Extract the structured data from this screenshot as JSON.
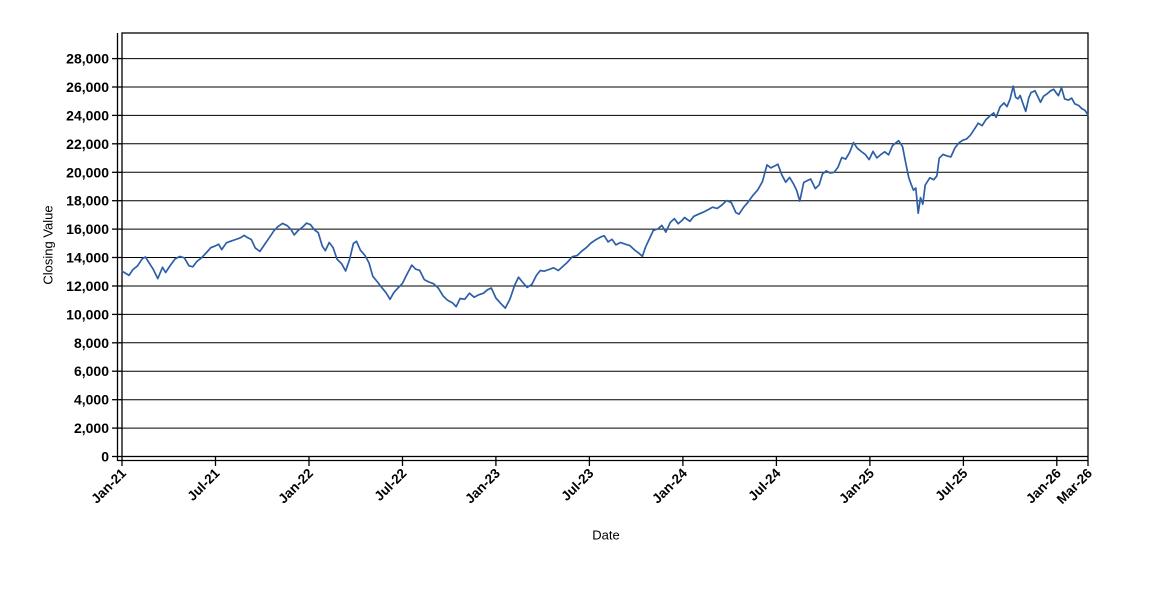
{
  "chart": {
    "background_color": "#ffffff",
    "line_color": "#2d5fa6",
    "grid_color": "#000000",
    "frame_color": "#000000",
    "text_color": "#000000"
  },
  "chart_data": {
    "type": "line",
    "title": "",
    "xlabel": "Date",
    "ylabel": "Closing Value",
    "legend": "none",
    "grid": "horizontal",
    "x_unit": "months since Jan-2021",
    "xlim": [
      0,
      62
    ],
    "ylim": [
      0,
      29800
    ],
    "y_ticks": [
      {
        "value": 0,
        "label": "0"
      },
      {
        "value": 2000,
        "label": "2,000"
      },
      {
        "value": 4000,
        "label": "4,000"
      },
      {
        "value": 6000,
        "label": "6,000"
      },
      {
        "value": 8000,
        "label": "8,000"
      },
      {
        "value": 10000,
        "label": "10,000"
      },
      {
        "value": 12000,
        "label": "12,000"
      },
      {
        "value": 14000,
        "label": "14,000"
      },
      {
        "value": 16000,
        "label": "16,000"
      },
      {
        "value": 18000,
        "label": "18,000"
      },
      {
        "value": 20000,
        "label": "20,000"
      },
      {
        "value": 22000,
        "label": "22,000"
      },
      {
        "value": 24000,
        "label": "24,000"
      },
      {
        "value": 26000,
        "label": "26,000"
      },
      {
        "value": 28000,
        "label": "28,000"
      }
    ],
    "x_ticks": [
      {
        "m": 0,
        "label": "Jan-21"
      },
      {
        "m": 6,
        "label": "Jul-21"
      },
      {
        "m": 12,
        "label": "Jan-22"
      },
      {
        "m": 18,
        "label": "Jul-22"
      },
      {
        "m": 24,
        "label": "Jan-23"
      },
      {
        "m": 30,
        "label": "Jul-23"
      },
      {
        "m": 36,
        "label": "Jan-24"
      },
      {
        "m": 42,
        "label": "Jul-24"
      },
      {
        "m": 48,
        "label": "Jan-25"
      },
      {
        "m": 54,
        "label": "Jul-25"
      },
      {
        "m": 60,
        "label": "Jan-26"
      },
      {
        "m": 62,
        "label": "Mar-26"
      }
    ],
    "series": [
      {
        "name": "Closing Value",
        "points": [
          [
            0,
            13040
          ],
          [
            0.25,
            12880
          ],
          [
            0.45,
            12740
          ],
          [
            0.7,
            13150
          ],
          [
            1,
            13420
          ],
          [
            1.3,
            13920
          ],
          [
            1.5,
            14040
          ],
          [
            1.75,
            13600
          ],
          [
            2,
            13180
          ],
          [
            2.3,
            12520
          ],
          [
            2.6,
            13310
          ],
          [
            2.8,
            12950
          ],
          [
            3.1,
            13450
          ],
          [
            3.4,
            13900
          ],
          [
            3.7,
            14070
          ],
          [
            4,
            13980
          ],
          [
            4.3,
            13420
          ],
          [
            4.55,
            13350
          ],
          [
            4.8,
            13720
          ],
          [
            5.1,
            13980
          ],
          [
            5.4,
            14320
          ],
          [
            5.7,
            14690
          ],
          [
            5.95,
            14800
          ],
          [
            6.2,
            14940
          ],
          [
            6.4,
            14560
          ],
          [
            6.7,
            15040
          ],
          [
            7,
            15160
          ],
          [
            7.3,
            15270
          ],
          [
            7.6,
            15390
          ],
          [
            7.85,
            15560
          ],
          [
            8,
            15440
          ],
          [
            8.3,
            15270
          ],
          [
            8.55,
            14680
          ],
          [
            8.85,
            14430
          ],
          [
            9.15,
            14920
          ],
          [
            9.45,
            15390
          ],
          [
            9.75,
            15880
          ],
          [
            10,
            16170
          ],
          [
            10.3,
            16400
          ],
          [
            10.6,
            16240
          ],
          [
            10.85,
            15980
          ],
          [
            11.05,
            15590
          ],
          [
            11.3,
            15900
          ],
          [
            11.6,
            16150
          ],
          [
            11.85,
            16420
          ],
          [
            12.1,
            16310
          ],
          [
            12.35,
            15950
          ],
          [
            12.6,
            15750
          ],
          [
            12.85,
            14820
          ],
          [
            13.05,
            14480
          ],
          [
            13.3,
            15060
          ],
          [
            13.55,
            14700
          ],
          [
            13.8,
            13890
          ],
          [
            14.1,
            13560
          ],
          [
            14.35,
            13050
          ],
          [
            14.6,
            13840
          ],
          [
            14.85,
            14990
          ],
          [
            15.05,
            15140
          ],
          [
            15.3,
            14520
          ],
          [
            15.6,
            14140
          ],
          [
            15.85,
            13620
          ],
          [
            16.1,
            12680
          ],
          [
            16.4,
            12280
          ],
          [
            16.7,
            11850
          ],
          [
            16.95,
            11520
          ],
          [
            17.2,
            11060
          ],
          [
            17.45,
            11550
          ],
          [
            17.7,
            11840
          ],
          [
            18,
            12190
          ],
          [
            18.3,
            12840
          ],
          [
            18.6,
            13470
          ],
          [
            18.85,
            13180
          ],
          [
            19.1,
            13100
          ],
          [
            19.4,
            12450
          ],
          [
            19.7,
            12280
          ],
          [
            20,
            12160
          ],
          [
            20.3,
            11850
          ],
          [
            20.6,
            11310
          ],
          [
            20.9,
            10990
          ],
          [
            21.2,
            10820
          ],
          [
            21.45,
            10550
          ],
          [
            21.7,
            11120
          ],
          [
            22,
            11060
          ],
          [
            22.3,
            11490
          ],
          [
            22.6,
            11210
          ],
          [
            22.9,
            11380
          ],
          [
            23.2,
            11490
          ],
          [
            23.45,
            11730
          ],
          [
            23.7,
            11860
          ],
          [
            24,
            11150
          ],
          [
            24.3,
            10780
          ],
          [
            24.6,
            10440
          ],
          [
            24.9,
            11080
          ],
          [
            25.2,
            12040
          ],
          [
            25.45,
            12620
          ],
          [
            25.7,
            12280
          ],
          [
            26,
            11900
          ],
          [
            26.3,
            12100
          ],
          [
            26.6,
            12740
          ],
          [
            26.85,
            13090
          ],
          [
            27.1,
            13040
          ],
          [
            27.4,
            13160
          ],
          [
            27.7,
            13280
          ],
          [
            28,
            13090
          ],
          [
            28.3,
            13380
          ],
          [
            28.6,
            13680
          ],
          [
            28.9,
            14060
          ],
          [
            29.2,
            14140
          ],
          [
            29.5,
            14440
          ],
          [
            29.8,
            14700
          ],
          [
            30.1,
            15020
          ],
          [
            30.4,
            15250
          ],
          [
            30.7,
            15430
          ],
          [
            30.95,
            15540
          ],
          [
            31.2,
            15100
          ],
          [
            31.45,
            15280
          ],
          [
            31.7,
            14890
          ],
          [
            32,
            15060
          ],
          [
            32.3,
            14940
          ],
          [
            32.6,
            14840
          ],
          [
            32.9,
            14530
          ],
          [
            33.15,
            14330
          ],
          [
            33.4,
            14090
          ],
          [
            33.6,
            14730
          ],
          [
            33.9,
            15440
          ],
          [
            34.1,
            15910
          ],
          [
            34.4,
            16020
          ],
          [
            34.65,
            16260
          ],
          [
            34.9,
            15790
          ],
          [
            35.2,
            16490
          ],
          [
            35.45,
            16730
          ],
          [
            35.7,
            16380
          ],
          [
            35.95,
            16610
          ],
          [
            36.1,
            16820
          ],
          [
            36.45,
            16550
          ],
          [
            36.7,
            16900
          ],
          [
            37,
            17050
          ],
          [
            37.3,
            17190
          ],
          [
            37.6,
            17350
          ],
          [
            37.9,
            17540
          ],
          [
            38.2,
            17460
          ],
          [
            38.5,
            17700
          ],
          [
            38.8,
            18010
          ],
          [
            39.1,
            17880
          ],
          [
            39.4,
            17160
          ],
          [
            39.6,
            17060
          ],
          [
            39.9,
            17540
          ],
          [
            40.2,
            17920
          ],
          [
            40.5,
            18380
          ],
          [
            40.8,
            18760
          ],
          [
            41.1,
            19340
          ],
          [
            41.4,
            20520
          ],
          [
            41.65,
            20310
          ],
          [
            41.9,
            20450
          ],
          [
            42.1,
            20560
          ],
          [
            42.35,
            19820
          ],
          [
            42.6,
            19300
          ],
          [
            42.85,
            19640
          ],
          [
            43.1,
            19180
          ],
          [
            43.3,
            18730
          ],
          [
            43.5,
            17970
          ],
          [
            43.75,
            19280
          ],
          [
            44,
            19420
          ],
          [
            44.2,
            19530
          ],
          [
            44.5,
            18850
          ],
          [
            44.75,
            19120
          ],
          [
            44.95,
            19870
          ],
          [
            45.2,
            20100
          ],
          [
            45.45,
            19950
          ],
          [
            45.7,
            19990
          ],
          [
            45.95,
            20340
          ],
          [
            46.2,
            21040
          ],
          [
            46.45,
            20930
          ],
          [
            46.7,
            21400
          ],
          [
            46.95,
            22090
          ],
          [
            47.2,
            21690
          ],
          [
            47.45,
            21460
          ],
          [
            47.7,
            21260
          ],
          [
            47.95,
            20890
          ],
          [
            48.2,
            21470
          ],
          [
            48.45,
            21010
          ],
          [
            48.7,
            21240
          ],
          [
            48.95,
            21440
          ],
          [
            49.2,
            21230
          ],
          [
            49.45,
            21870
          ],
          [
            49.65,
            22050
          ],
          [
            49.85,
            22220
          ],
          [
            50.1,
            21790
          ],
          [
            50.3,
            20660
          ],
          [
            50.5,
            19610
          ],
          [
            50.65,
            19150
          ],
          [
            50.8,
            18740
          ],
          [
            50.95,
            18890
          ],
          [
            51.1,
            17120
          ],
          [
            51.25,
            18220
          ],
          [
            51.4,
            17750
          ],
          [
            51.55,
            19100
          ],
          [
            51.7,
            19360
          ],
          [
            51.85,
            19620
          ],
          [
            52.1,
            19480
          ],
          [
            52.3,
            19750
          ],
          [
            52.45,
            20990
          ],
          [
            52.7,
            21260
          ],
          [
            52.95,
            21150
          ],
          [
            53.2,
            21080
          ],
          [
            53.45,
            21700
          ],
          [
            53.7,
            22050
          ],
          [
            53.95,
            22250
          ],
          [
            54.2,
            22340
          ],
          [
            54.45,
            22610
          ],
          [
            54.75,
            23100
          ],
          [
            54.95,
            23450
          ],
          [
            55.2,
            23280
          ],
          [
            55.45,
            23700
          ],
          [
            55.7,
            23960
          ],
          [
            55.95,
            24180
          ],
          [
            56.1,
            23870
          ],
          [
            56.35,
            24590
          ],
          [
            56.6,
            24880
          ],
          [
            56.8,
            24620
          ],
          [
            57,
            25150
          ],
          [
            57.2,
            26060
          ],
          [
            57.35,
            25280
          ],
          [
            57.5,
            25160
          ],
          [
            57.65,
            25400
          ],
          [
            57.8,
            24900
          ],
          [
            58,
            24280
          ],
          [
            58.2,
            25240
          ],
          [
            58.35,
            25610
          ],
          [
            58.6,
            25730
          ],
          [
            58.8,
            25280
          ],
          [
            58.95,
            24930
          ],
          [
            59.15,
            25350
          ],
          [
            59.35,
            25500
          ],
          [
            59.6,
            25730
          ],
          [
            59.8,
            25840
          ],
          [
            59.95,
            25600
          ],
          [
            60.1,
            25390
          ],
          [
            60.3,
            25950
          ],
          [
            60.5,
            25160
          ],
          [
            60.75,
            25080
          ],
          [
            60.95,
            25220
          ],
          [
            61.15,
            24820
          ],
          [
            61.4,
            24700
          ],
          [
            61.6,
            24480
          ],
          [
            61.8,
            24360
          ],
          [
            62,
            24040
          ]
        ]
      }
    ]
  }
}
